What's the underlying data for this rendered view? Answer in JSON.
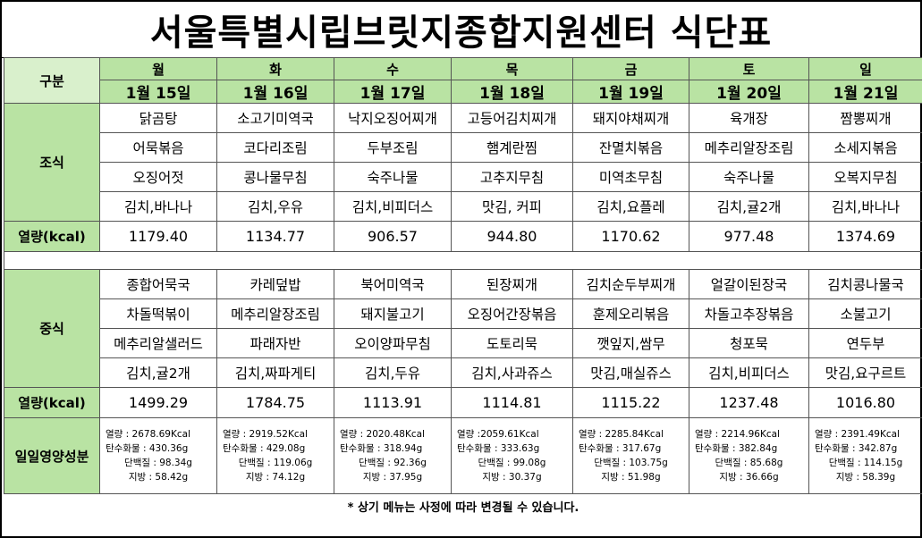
{
  "title": "서울특별시립브릿지종합지원센터  식단표",
  "header": {
    "label": "구분",
    "days": [
      "월",
      "화",
      "수",
      "목",
      "금",
      "토",
      "일"
    ],
    "dates": [
      "1월 15일",
      "1월 16일",
      "1월 17일",
      "1월 18일",
      "1월 19일",
      "1월 20일",
      "1월 21일"
    ]
  },
  "breakfast": {
    "label": "조식",
    "rows": [
      [
        "닭곰탕",
        "소고기미역국",
        "낙지오징어찌개",
        "고등어김치찌개",
        "돼지야채찌개",
        "육개장",
        "짬뽕찌개"
      ],
      [
        "어묵볶음",
        "코다리조림",
        "두부조림",
        "햄계란찜",
        "잔멸치볶음",
        "메추리알장조림",
        "소세지볶음"
      ],
      [
        "오징어젓",
        "콩나물무침",
        "숙주나물",
        "고추지무침",
        "미역초무침",
        "숙주나물",
        "오복지무침"
      ],
      [
        "김치,바나나",
        "김치,우유",
        "김치,비피더스",
        "맛김,  커피",
        "김치,요플레",
        "김치,귤2개",
        "김치,바나나"
      ]
    ],
    "kcal_label": "열량(kcal)",
    "kcal": [
      "1179.40",
      "1134.77",
      "906.57",
      "944.80",
      "1170.62",
      "977.48",
      "1374.69"
    ]
  },
  "lunch": {
    "label": "중식",
    "rows": [
      [
        "종합어묵국",
        "카레덮밥",
        "북어미역국",
        "된장찌개",
        "김치순두부찌개",
        "얼갈이된장국",
        "김치콩나물국"
      ],
      [
        "차돌떡볶이",
        "메추리알장조림",
        "돼지불고기",
        "오징어간장볶음",
        "훈제오리볶음",
        "차돌고추장볶음",
        "소불고기"
      ],
      [
        "메추리알샐러드",
        "파래자반",
        "오이양파무침",
        "도토리묵",
        "깻잎지,쌈무",
        "청포묵",
        "연두부"
      ],
      [
        "김치,귤2개",
        "김치,짜파게티",
        "김치,두유",
        "김치,사과쥬스",
        "맛김,매실쥬스",
        "김치,비피더스",
        "맛김,요구르트"
      ]
    ],
    "kcal_label": "열량(kcal)",
    "kcal": [
      "1499.29",
      "1784.75",
      "1113.91",
      "1114.81",
      "1115.22",
      "1237.48",
      "1016.80"
    ]
  },
  "nutrition": {
    "label": "일일영양성분",
    "days": [
      {
        "kcal": "열량 : 2678.69Kcal",
        "carb": "탄수화물 : 430.36g",
        "protein": "단백질 : 98.34g",
        "fat": "지방 : 58.42g"
      },
      {
        "kcal": "열량 : 2919.52Kcal",
        "carb": "탄수화물 : 429.08g",
        "protein": "단백질 : 119.06g",
        "fat": "지방 : 74.12g"
      },
      {
        "kcal": "열량 : 2020.48Kcal",
        "carb": "탄수화물 : 318.94g",
        "protein": "단백질 : 92.36g",
        "fat": "지방 : 37.95g"
      },
      {
        "kcal": "열량 :2059.61Kcal",
        "carb": "탄수화물 : 333.63g",
        "protein": "단백질 : 99.08g",
        "fat": "지방 : 30.37g"
      },
      {
        "kcal": "열량 : 2285.84Kcal",
        "carb": "탄수화물 : 317.67g",
        "protein": "단백질 : 103.75g",
        "fat": "지방 : 51.98g"
      },
      {
        "kcal": "열량 : 2214.96Kcal",
        "carb": "탄수화물 : 382.84g",
        "protein": "단백질 : 85.68g",
        "fat": "지방 : 36.66g"
      },
      {
        "kcal": "열량 : 2391.49Kcal",
        "carb": "탄수화물 : 342.87g",
        "protein": "단백질 : 114.15g",
        "fat": "지방 : 58.39g"
      }
    ]
  },
  "footnote": "* 상기 메뉴는 사정에 따라 변경될 수 있습니다."
}
